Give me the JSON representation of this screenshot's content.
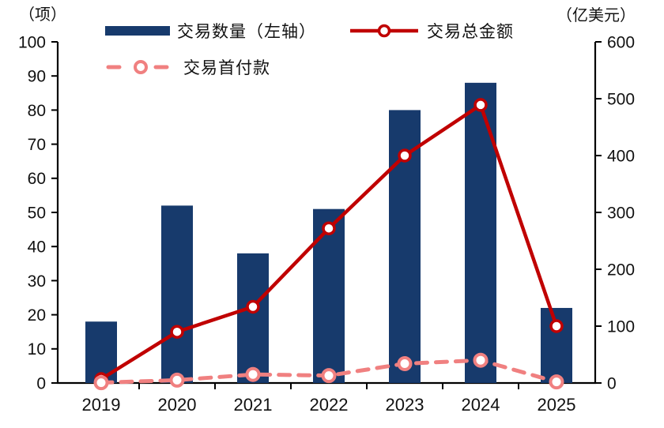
{
  "units": {
    "left": "（项）",
    "right": "（亿美元）"
  },
  "legend": [
    {
      "label": "交易数量（左轴）",
      "series": "bars"
    },
    {
      "label": "交易总金额",
      "series": "solid-line"
    },
    {
      "label": "交易首付款",
      "series": "dashed-line"
    }
  ],
  "colors": {
    "bar": "#173A6C",
    "line": "#C00000",
    "dashed": "#F08080",
    "axis": "#000000",
    "marker_fill": "#FFFFFF"
  },
  "chart_data": {
    "type": "bar",
    "subtype": "bar+line combo, dual axis",
    "categories": [
      "2019",
      "2020",
      "2021",
      "2022",
      "2023",
      "2024",
      "2025"
    ],
    "series": [
      {
        "name": "交易数量（左轴）",
        "type": "bar",
        "axis": "left",
        "values": [
          18,
          52,
          38,
          51,
          80,
          88,
          22
        ]
      },
      {
        "name": "交易总金额",
        "type": "line",
        "axis": "right",
        "values": [
          7,
          90,
          134,
          272,
          400,
          489,
          100
        ]
      },
      {
        "name": "交易首付款",
        "type": "line-dashed",
        "axis": "right",
        "values": [
          0.5,
          5,
          15,
          13,
          34,
          40,
          2
        ]
      }
    ],
    "left_axis": {
      "label": "（项）",
      "min": 0,
      "max": 100,
      "step": 10
    },
    "right_axis": {
      "label": "（亿美元）",
      "min": 0,
      "max": 600,
      "step": 100
    },
    "grid": false,
    "legend_position": "top"
  }
}
